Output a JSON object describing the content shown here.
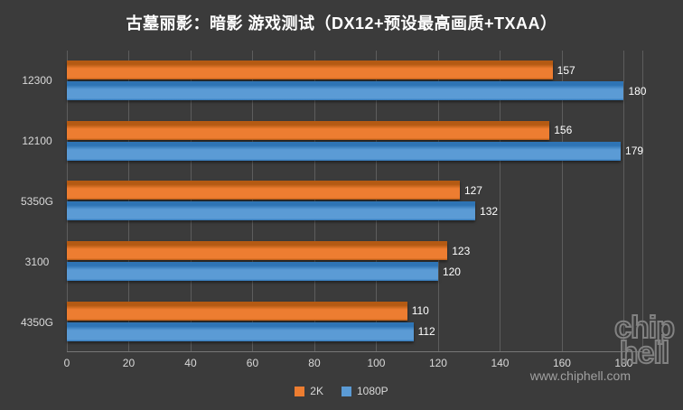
{
  "title": "古墓丽影：暗影 游戏测试（DX12+预设最高画质+TXAA）",
  "watermark": "www.chiphell.com",
  "logo": {
    "line1": "chip",
    "line2": "hell"
  },
  "colors": {
    "background": "#3b3b3b",
    "grid": "#5d5d5d",
    "text": "#d9d9d9",
    "accent_orange": "#ed7d31",
    "accent_blue": "#5b9bd5"
  },
  "chart_data": {
    "type": "bar",
    "orientation": "horizontal",
    "title": "古墓丽影：暗影 游戏测试（DX12+预设最高画质+TXAA）",
    "categories": [
      "12300",
      "12100",
      "5350G",
      "3100",
      "4350G"
    ],
    "series": [
      {
        "name": "2K",
        "color": "#ed7d31",
        "color_dark": "#b45a13",
        "values": [
          157,
          156,
          127,
          123,
          110
        ]
      },
      {
        "name": "1080P",
        "color": "#5b9bd5",
        "color_dark": "#2e74b5",
        "values": [
          180,
          179,
          132,
          120,
          112
        ]
      }
    ],
    "xlabel": "",
    "ylabel": "",
    "xlim": [
      0,
      186
    ],
    "xticks": [
      0,
      20,
      40,
      60,
      80,
      100,
      120,
      140,
      160,
      180
    ],
    "grid": true,
    "legend_position": "bottom"
  }
}
